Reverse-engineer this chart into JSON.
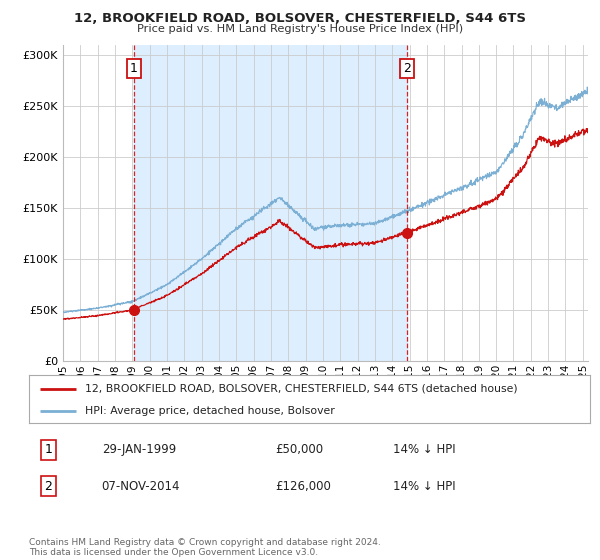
{
  "title": "12, BROOKFIELD ROAD, BOLSOVER, CHESTERFIELD, S44 6TS",
  "subtitle": "Price paid vs. HM Land Registry's House Price Index (HPI)",
  "ylabel_ticks": [
    "£0",
    "£50K",
    "£100K",
    "£150K",
    "£200K",
    "£250K",
    "£300K"
  ],
  "ytick_values": [
    0,
    50000,
    100000,
    150000,
    200000,
    250000,
    300000
  ],
  "ylim": [
    0,
    310000
  ],
  "xlim_start": 1995.0,
  "xlim_end": 2025.3,
  "sale1_date": 1999.08,
  "sale1_price": 50000,
  "sale2_date": 2014.85,
  "sale2_price": 126000,
  "hpi_color": "#7bafd4",
  "price_color": "#cc1111",
  "vline_color": "#cc1111",
  "shade_color": "#ddeeff",
  "background_color": "#ffffff",
  "grid_color": "#cccccc",
  "legend_entry1": "12, BROOKFIELD ROAD, BOLSOVER, CHESTERFIELD, S44 6TS (detached house)",
  "legend_entry2": "HPI: Average price, detached house, Bolsover",
  "table_row1": [
    "1",
    "29-JAN-1999",
    "£50,000",
    "14% ↓ HPI"
  ],
  "table_row2": [
    "2",
    "07-NOV-2014",
    "£126,000",
    "14% ↓ HPI"
  ],
  "footnote": "Contains HM Land Registry data © Crown copyright and database right 2024.\nThis data is licensed under the Open Government Licence v3.0."
}
